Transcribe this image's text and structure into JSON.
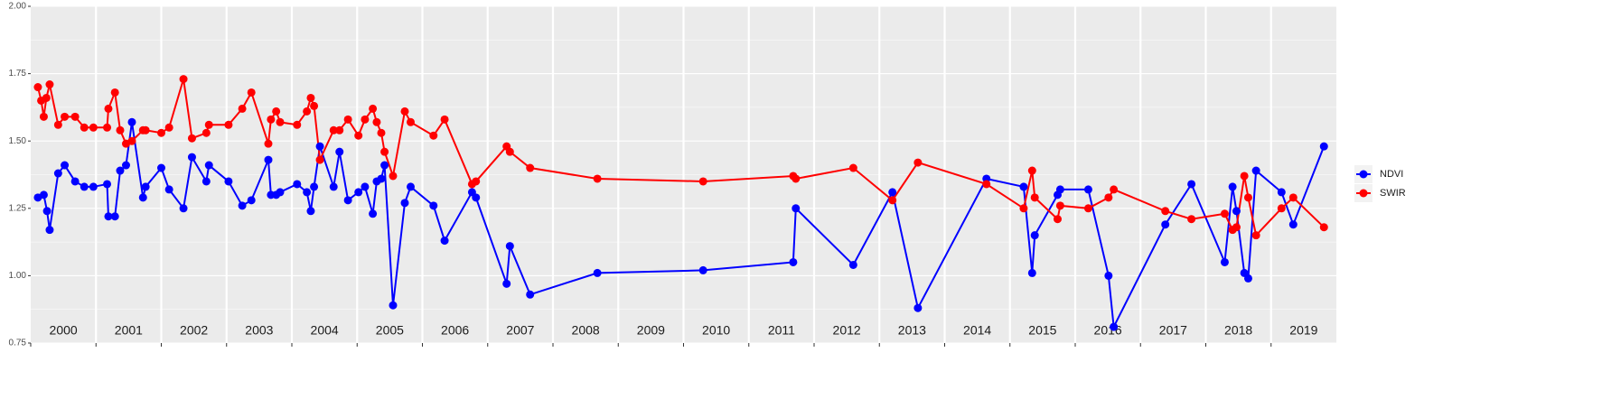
{
  "chart_data": {
    "type": "line",
    "xlim": [
      2000,
      2020
    ],
    "xticks": [
      2000,
      2001,
      2002,
      2003,
      2004,
      2005,
      2006,
      2007,
      2008,
      2009,
      2010,
      2011,
      2012,
      2013,
      2014,
      2015,
      2016,
      2017,
      2018,
      2019
    ],
    "ylim": [
      0.75,
      2.0
    ],
    "yticks": [
      0.75,
      {
        "value": 1,
        "label": "1.00"
      },
      1.25,
      {
        "value": 1.5,
        "label": "1.50"
      },
      1.75,
      {
        "value": 2,
        "label": "2.00"
      }
    ],
    "grid": true,
    "legend": "right",
    "series": [
      {
        "name": "NDVI",
        "color": "#0000ff",
        "x": [
          2000.11,
          2000.2,
          2000.25,
          2000.29,
          2000.42,
          2000.52,
          2000.68,
          2000.82,
          2000.96,
          2001.17,
          2001.19,
          2001.29,
          2001.37,
          2001.46,
          2001.55,
          2001.72,
          2001.76,
          2002.0,
          2002.12,
          2002.34,
          2002.47,
          2002.69,
          2002.73,
          2003.03,
          2003.24,
          2003.38,
          2003.64,
          2003.68,
          2003.76,
          2003.82,
          2004.08,
          2004.23,
          2004.29,
          2004.34,
          2004.43,
          2004.64,
          2004.73,
          2004.86,
          2005.02,
          2005.12,
          2005.24,
          2005.3,
          2005.37,
          2005.42,
          2005.55,
          2005.73,
          2005.82,
          2006.17,
          2006.34,
          2006.76,
          2006.82,
          2007.29,
          2007.34,
          2007.65,
          2008.68,
          2010.3,
          2011.68,
          2011.72,
          2012.6,
          2013.2,
          2013.59,
          2014.64,
          2015.21,
          2015.34,
          2015.38,
          2015.73,
          2015.77,
          2016.2,
          2016.51,
          2016.59,
          2017.38,
          2017.78,
          2018.29,
          2018.41,
          2018.47,
          2018.59,
          2018.65,
          2018.77,
          2019.16,
          2019.34,
          2019.81
        ],
        "values": [
          1.29,
          1.3,
          1.24,
          1.17,
          1.38,
          1.41,
          1.35,
          1.33,
          1.33,
          1.34,
          1.22,
          1.22,
          1.39,
          1.41,
          1.57,
          1.29,
          1.33,
          1.4,
          1.32,
          1.25,
          1.44,
          1.35,
          1.41,
          1.35,
          1.26,
          1.28,
          1.43,
          1.3,
          1.3,
          1.31,
          1.34,
          1.31,
          1.24,
          1.33,
          1.48,
          1.33,
          1.46,
          1.28,
          1.31,
          1.33,
          1.23,
          1.35,
          1.36,
          1.41,
          0.89,
          1.27,
          1.33,
          1.26,
          1.13,
          1.31,
          1.29,
          0.97,
          1.11,
          0.93,
          1.01,
          1.02,
          1.05,
          1.25,
          1.04,
          1.31,
          0.88,
          1.36,
          1.33,
          1.01,
          1.15,
          1.3,
          1.32,
          1.32,
          1.0,
          0.81,
          1.19,
          1.34,
          1.05,
          1.33,
          1.24,
          1.01,
          0.99,
          1.39,
          1.31,
          1.19,
          1.48
        ]
      },
      {
        "name": "SWIR",
        "color": "#ff0000",
        "x": [
          2000.11,
          2000.16,
          2000.2,
          2000.24,
          2000.29,
          2000.42,
          2000.52,
          2000.68,
          2000.82,
          2000.96,
          2001.17,
          2001.19,
          2001.29,
          2001.37,
          2001.46,
          2001.55,
          2001.72,
          2001.76,
          2002.0,
          2002.12,
          2002.34,
          2002.47,
          2002.69,
          2002.73,
          2003.03,
          2003.24,
          2003.38,
          2003.64,
          2003.68,
          2003.76,
          2003.82,
          2004.08,
          2004.23,
          2004.29,
          2004.34,
          2004.43,
          2004.64,
          2004.73,
          2004.86,
          2005.02,
          2005.12,
          2005.24,
          2005.3,
          2005.37,
          2005.42,
          2005.55,
          2005.73,
          2005.82,
          2006.17,
          2006.34,
          2006.76,
          2006.82,
          2007.29,
          2007.34,
          2007.65,
          2008.68,
          2010.3,
          2011.68,
          2011.72,
          2012.6,
          2013.2,
          2013.59,
          2014.64,
          2015.21,
          2015.34,
          2015.38,
          2015.73,
          2015.77,
          2016.2,
          2016.51,
          2016.59,
          2017.38,
          2017.78,
          2018.29,
          2018.41,
          2018.47,
          2018.59,
          2018.65,
          2018.77,
          2019.16,
          2019.34,
          2019.81
        ],
        "values": [
          1.7,
          1.65,
          1.59,
          1.66,
          1.71,
          1.56,
          1.59,
          1.59,
          1.55,
          1.55,
          1.55,
          1.62,
          1.68,
          1.54,
          1.49,
          1.5,
          1.54,
          1.54,
          1.53,
          1.55,
          1.73,
          1.51,
          1.53,
          1.56,
          1.56,
          1.62,
          1.68,
          1.49,
          1.58,
          1.61,
          1.57,
          1.56,
          1.61,
          1.66,
          1.63,
          1.43,
          1.54,
          1.54,
          1.58,
          1.52,
          1.58,
          1.62,
          1.57,
          1.53,
          1.46,
          1.37,
          1.61,
          1.57,
          1.52,
          1.58,
          1.34,
          1.35,
          1.48,
          1.46,
          1.4,
          1.36,
          1.35,
          1.37,
          1.36,
          1.4,
          1.28,
          1.42,
          1.34,
          1.25,
          1.39,
          1.29,
          1.21,
          1.26,
          1.25,
          1.29,
          1.32,
          1.24,
          1.21,
          1.23,
          1.17,
          1.18,
          1.37,
          1.29,
          1.15,
          1.25,
          1.29,
          1.18
        ]
      }
    ]
  }
}
